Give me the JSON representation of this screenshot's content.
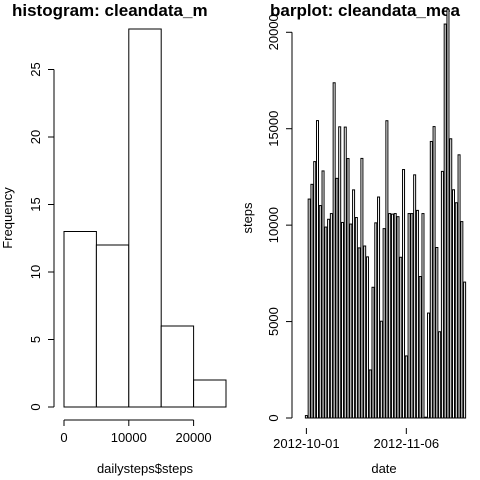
{
  "chart_data": [
    {
      "type": "histogram",
      "title": "histogram: cleandata_m",
      "xlabel": "dailysteps$steps",
      "ylabel": "Frequency",
      "bins": [
        {
          "from": 0,
          "to": 5000,
          "count": 13
        },
        {
          "from": 5000,
          "to": 10000,
          "count": 12
        },
        {
          "from": 10000,
          "to": 15000,
          "count": 28
        },
        {
          "from": 15000,
          "to": 20000,
          "count": 6
        },
        {
          "from": 20000,
          "to": 25000,
          "count": 2
        }
      ],
      "x_ticks": [
        0,
        10000,
        20000
      ],
      "y_ticks": [
        0,
        5,
        10,
        15,
        20,
        25
      ],
      "xlim": [
        0,
        25000
      ],
      "ylim": [
        0,
        28
      ]
    },
    {
      "type": "bar",
      "title": "barplot: cleandata_mea",
      "xlabel": "date",
      "ylabel": "steps",
      "x_tick_labels": [
        {
          "label": "2012-10-01",
          "at_bar": 0
        },
        {
          "label": "2012-11-06",
          "at_bar": 36
        }
      ],
      "y_ticks": [
        0,
        5000,
        10000,
        15000,
        20000
      ],
      "ylim": [
        0,
        21000
      ],
      "values": [
        126,
        11352,
        12116,
        13294,
        15420,
        11015,
        12811,
        9900,
        10304,
        10600,
        17382,
        12426,
        15098,
        10139,
        15084,
        13452,
        10056,
        11829,
        10395,
        8821,
        13460,
        8918,
        8355,
        2492,
        6778,
        10119,
        11458,
        5018,
        9819,
        15414,
        10600,
        10571,
        10600,
        10439,
        8334,
        12883,
        3219,
        10600,
        10600,
        12608,
        10765,
        7336,
        10600,
        41,
        5441,
        14339,
        15110,
        8841,
        4472,
        12787,
        20427,
        21194,
        14478,
        11834,
        11162,
        13646,
        10183,
        7047
      ]
    }
  ]
}
